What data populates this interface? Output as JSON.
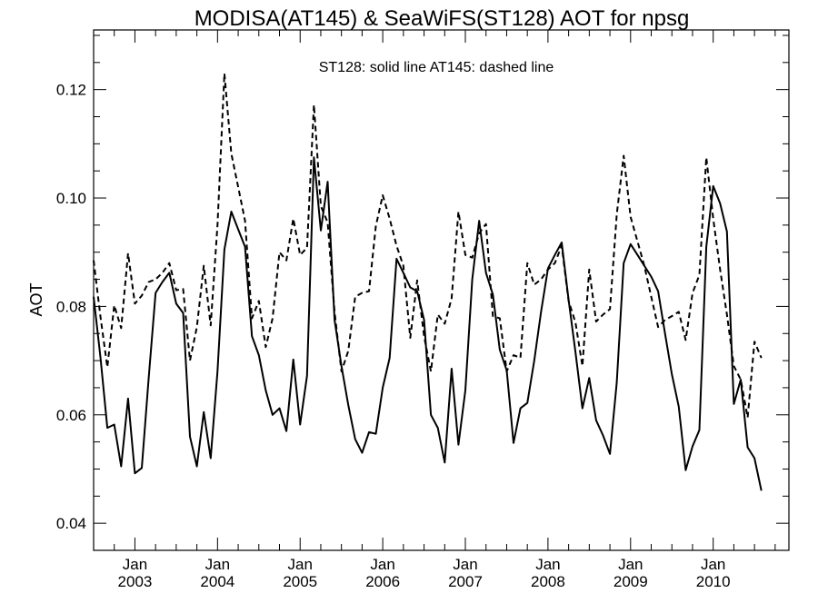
{
  "chart_data": {
    "type": "line",
    "title": "MODISA(AT145) & SeaWiFS(ST128)  AOT for npsg",
    "annotation": "ST128: solid line   AT145: dashed line",
    "ylabel": "AOT",
    "xlabel": "",
    "xlim": [
      "2002-07",
      "2010-12"
    ],
    "ylim": [
      0.035,
      0.131
    ],
    "y_ticks": [
      "0.04",
      "0.06",
      "0.08",
      "0.10",
      "0.12"
    ],
    "x_ticks": [
      {
        "month": "Jan",
        "year": "2003"
      },
      {
        "month": "Jan",
        "year": "2004"
      },
      {
        "month": "Jan",
        "year": "2005"
      },
      {
        "month": "Jan",
        "year": "2006"
      },
      {
        "month": "Jan",
        "year": "2007"
      },
      {
        "month": "Jan",
        "year": "2008"
      },
      {
        "month": "Jan",
        "year": "2009"
      },
      {
        "month": "Jan",
        "year": "2010"
      }
    ],
    "grid": false,
    "series": [
      {
        "name": "ST128",
        "style": "solid",
        "color": "#000000",
        "points": [
          [
            "2002-07",
            0.0818
          ],
          [
            "2002-08",
            0.0705
          ],
          [
            "2002-09",
            0.0576
          ],
          [
            "2002-10",
            0.0582
          ],
          [
            "2002-11",
            0.0505
          ],
          [
            "2002-12",
            0.063
          ],
          [
            "2003-01",
            0.0492
          ],
          [
            "2003-02",
            0.0502
          ],
          [
            "2003-03",
            0.0668
          ],
          [
            "2003-04",
            0.0825
          ],
          [
            "2003-05",
            0.0845
          ],
          [
            "2003-06",
            0.0862
          ],
          [
            "2003-07",
            0.0805
          ],
          [
            "2003-08",
            0.0788
          ],
          [
            "2003-09",
            0.056
          ],
          [
            "2003-10",
            0.0505
          ],
          [
            "2003-11",
            0.0605
          ],
          [
            "2003-12",
            0.052
          ],
          [
            "2004-01",
            0.068
          ],
          [
            "2004-02",
            0.0905
          ],
          [
            "2004-03",
            0.0975
          ],
          [
            "2004-04",
            0.0942
          ],
          [
            "2004-05",
            0.091
          ],
          [
            "2004-06",
            0.0745
          ],
          [
            "2004-07",
            0.071
          ],
          [
            "2004-08",
            0.0645
          ],
          [
            "2004-09",
            0.06
          ],
          [
            "2004-10",
            0.0612
          ],
          [
            "2004-11",
            0.057
          ],
          [
            "2004-12",
            0.0702
          ],
          [
            "2005-01",
            0.0582
          ],
          [
            "2005-02",
            0.0672
          ],
          [
            "2005-03",
            0.1075
          ],
          [
            "2005-04",
            0.094
          ],
          [
            "2005-05",
            0.103
          ],
          [
            "2005-06",
            0.0775
          ],
          [
            "2005-07",
            0.069
          ],
          [
            "2005-08",
            0.0618
          ],
          [
            "2005-09",
            0.0555
          ],
          [
            "2005-10",
            0.053
          ],
          [
            "2005-11",
            0.0568
          ],
          [
            "2005-12",
            0.0565
          ],
          [
            "2006-01",
            0.065
          ],
          [
            "2006-02",
            0.0705
          ],
          [
            "2006-03",
            0.0888
          ],
          [
            "2006-04",
            0.0862
          ],
          [
            "2006-05",
            0.0835
          ],
          [
            "2006-06",
            0.0828
          ],
          [
            "2006-07",
            0.0775
          ],
          [
            "2006-08",
            0.06
          ],
          [
            "2006-09",
            0.0576
          ],
          [
            "2006-10",
            0.0512
          ],
          [
            "2006-11",
            0.0685
          ],
          [
            "2006-12",
            0.0545
          ],
          [
            "2007-01",
            0.0645
          ],
          [
            "2007-02",
            0.085
          ],
          [
            "2007-03",
            0.0958
          ],
          [
            "2007-04",
            0.0862
          ],
          [
            "2007-05",
            0.0822
          ],
          [
            "2007-06",
            0.072
          ],
          [
            "2007-07",
            0.0682
          ],
          [
            "2007-08",
            0.0548
          ],
          [
            "2007-09",
            0.0612
          ],
          [
            "2007-10",
            0.0622
          ],
          [
            "2007-11",
            0.07
          ],
          [
            "2007-12",
            0.079
          ],
          [
            "2008-01",
            0.087
          ],
          [
            "2008-02",
            0.0895
          ],
          [
            "2008-03",
            0.0918
          ],
          [
            "2008-04",
            0.0812
          ],
          [
            "2008-05",
            0.0715
          ],
          [
            "2008-06",
            0.0612
          ],
          [
            "2008-07",
            0.0668
          ],
          [
            "2008-08",
            0.059
          ],
          [
            "2008-09",
            0.0562
          ],
          [
            "2008-10",
            0.0528
          ],
          [
            "2008-11",
            0.066
          ],
          [
            "2008-12",
            0.088
          ],
          [
            "2009-01",
            0.0915
          ],
          [
            "2009-02",
            0.0895
          ],
          [
            "2009-03",
            0.0875
          ],
          [
            "2009-04",
            0.0855
          ],
          [
            "2009-05",
            0.0828
          ],
          [
            "2009-06",
            0.075
          ],
          [
            "2009-07",
            0.0675
          ],
          [
            "2009-08",
            0.0615
          ],
          [
            "2009-09",
            0.0498
          ],
          [
            "2009-10",
            0.0542
          ],
          [
            "2009-11",
            0.0572
          ],
          [
            "2009-12",
            0.091
          ],
          [
            "2010-01",
            0.1022
          ],
          [
            "2010-02",
            0.099
          ],
          [
            "2010-03",
            0.0938
          ],
          [
            "2010-04",
            0.062
          ],
          [
            "2010-05",
            0.0665
          ],
          [
            "2010-06",
            0.054
          ],
          [
            "2010-07",
            0.052
          ],
          [
            "2010-08",
            0.046
          ]
        ]
      },
      {
        "name": "AT145",
        "style": "dashed",
        "color": "#000000",
        "points": [
          [
            "2002-07",
            0.0885
          ],
          [
            "2002-08",
            0.078
          ],
          [
            "2002-09",
            0.0688
          ],
          [
            "2002-10",
            0.0802
          ],
          [
            "2002-11",
            0.076
          ],
          [
            "2002-12",
            0.0898
          ],
          [
            "2003-01",
            0.0805
          ],
          [
            "2003-02",
            0.082
          ],
          [
            "2003-03",
            0.0845
          ],
          [
            "2003-04",
            0.085
          ],
          [
            "2003-05",
            0.0862
          ],
          [
            "2003-06",
            0.088
          ],
          [
            "2003-07",
            0.083
          ],
          [
            "2003-08",
            0.0832
          ],
          [
            "2003-09",
            0.07
          ],
          [
            "2003-10",
            0.0762
          ],
          [
            "2003-11",
            0.0875
          ],
          [
            "2003-12",
            0.0765
          ],
          [
            "2004-01",
            0.095
          ],
          [
            "2004-02",
            0.123
          ],
          [
            "2004-03",
            0.1082
          ],
          [
            "2004-04",
            0.102
          ],
          [
            "2004-05",
            0.0958
          ],
          [
            "2004-06",
            0.0778
          ],
          [
            "2004-07",
            0.081
          ],
          [
            "2004-08",
            0.0725
          ],
          [
            "2004-09",
            0.0778
          ],
          [
            "2004-10",
            0.09
          ],
          [
            "2004-11",
            0.0885
          ],
          [
            "2004-12",
            0.0962
          ],
          [
            "2005-01",
            0.0895
          ],
          [
            "2005-02",
            0.0908
          ],
          [
            "2005-03",
            0.1172
          ],
          [
            "2005-04",
            0.0985
          ],
          [
            "2005-05",
            0.0955
          ],
          [
            "2005-06",
            0.079
          ],
          [
            "2005-07",
            0.068
          ],
          [
            "2005-08",
            0.0718
          ],
          [
            "2005-09",
            0.0818
          ],
          [
            "2005-10",
            0.0825
          ],
          [
            "2005-11",
            0.0828
          ],
          [
            "2005-12",
            0.0948
          ],
          [
            "2006-01",
            0.1005
          ],
          [
            "2006-02",
            0.0962
          ],
          [
            "2006-03",
            0.0912
          ],
          [
            "2006-04",
            0.0875
          ],
          [
            "2006-05",
            0.0742
          ],
          [
            "2006-06",
            0.0848
          ],
          [
            "2006-07",
            0.0745
          ],
          [
            "2006-08",
            0.068
          ],
          [
            "2006-09",
            0.0785
          ],
          [
            "2006-10",
            0.0768
          ],
          [
            "2006-11",
            0.0815
          ],
          [
            "2006-12",
            0.0975
          ],
          [
            "2007-01",
            0.0895
          ],
          [
            "2007-02",
            0.089
          ],
          [
            "2007-03",
            0.0935
          ],
          [
            "2007-04",
            0.0952
          ],
          [
            "2007-05",
            0.0782
          ],
          [
            "2007-06",
            0.0778
          ],
          [
            "2007-07",
            0.068
          ],
          [
            "2007-08",
            0.071
          ],
          [
            "2007-09",
            0.0705
          ],
          [
            "2007-10",
            0.088
          ],
          [
            "2007-11",
            0.084
          ],
          [
            "2007-12",
            0.085
          ],
          [
            "2008-01",
            0.0868
          ],
          [
            "2008-02",
            0.088
          ],
          [
            "2008-03",
            0.0912
          ],
          [
            "2008-04",
            0.081
          ],
          [
            "2008-05",
            0.077
          ],
          [
            "2008-06",
            0.069
          ],
          [
            "2008-07",
            0.0868
          ],
          [
            "2008-08",
            0.0772
          ],
          [
            "2008-09",
            0.0785
          ],
          [
            "2008-10",
            0.0795
          ],
          [
            "2008-11",
            0.097
          ],
          [
            "2008-12",
            0.1078
          ],
          [
            "2009-01",
            0.0965
          ],
          [
            "2009-02",
            0.092
          ],
          [
            "2009-03",
            0.0875
          ],
          [
            "2009-04",
            0.0818
          ],
          [
            "2009-05",
            0.0762
          ],
          [
            "2009-06",
            0.0775
          ],
          [
            "2009-07",
            0.0782
          ],
          [
            "2009-08",
            0.079
          ],
          [
            "2009-09",
            0.0738
          ],
          [
            "2009-10",
            0.0825
          ],
          [
            "2009-11",
            0.0858
          ],
          [
            "2009-12",
            0.1075
          ],
          [
            "2010-01",
            0.0962
          ],
          [
            "2010-02",
            0.0868
          ],
          [
            "2010-03",
            0.0785
          ],
          [
            "2010-04",
            0.069
          ],
          [
            "2010-05",
            0.0665
          ],
          [
            "2010-06",
            0.0595
          ],
          [
            "2010-07",
            0.0735
          ],
          [
            "2010-08",
            0.0705
          ]
        ]
      }
    ]
  }
}
